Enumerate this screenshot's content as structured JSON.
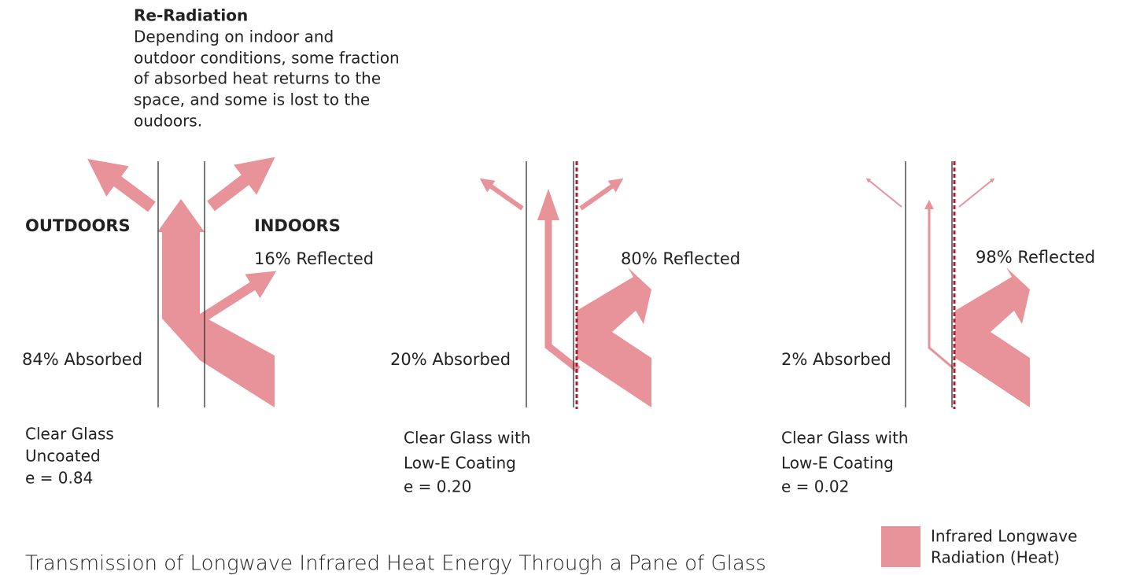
{
  "re_radiation": {
    "title": "Re-Radiation",
    "lines": [
      "Depending on indoor and",
      "outdoor conditions, some fraction",
      "of absorbed heat returns to the",
      "space, and some is lost to the",
      "oudoors."
    ]
  },
  "outdoors_label": "OUTDOORS",
  "indoors_label": "INDOORS",
  "panels": [
    {
      "reflected": "16% Reflected",
      "absorbed": "84% Absorbed",
      "caption": [
        "Clear Glass",
        "Uncoated",
        "e = 0.84"
      ]
    },
    {
      "reflected": "80% Reflected",
      "absorbed": "20% Absorbed",
      "caption": [
        "Clear Glass with",
        "Low-E Coating",
        "e = 0.20"
      ]
    },
    {
      "reflected": "98% Reflected",
      "absorbed": "2% Absorbed",
      "caption": [
        "Clear Glass with",
        "Low-E Coating",
        "e = 0.02"
      ]
    }
  ],
  "title": "Transmission of Longwave Infrared Heat Energy Through a Pane of Glass",
  "legend": {
    "label": [
      "Infrared Longwave",
      "Radiation (Heat)"
    ]
  }
}
